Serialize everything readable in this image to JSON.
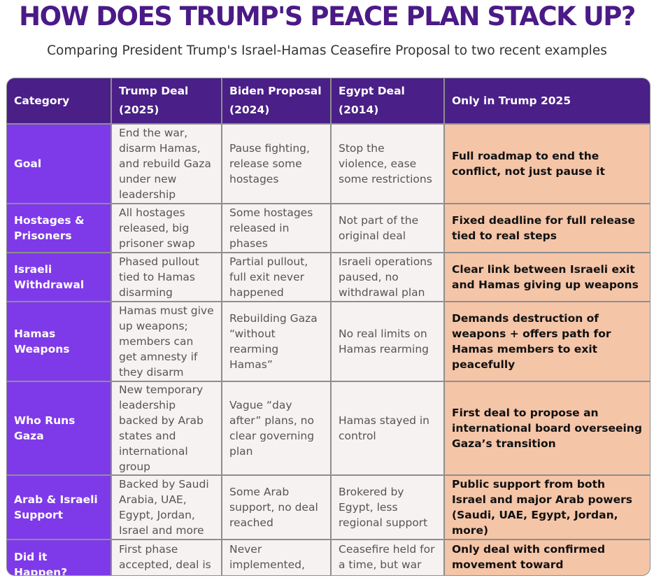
{
  "title": "HOW DOES TRUMP'S PEACE PLAN STACK UP?",
  "subtitle": "Comparing President Trump's Israel-Hamas Ceasefire Proposal to two recent examples",
  "table": {
    "headers": [
      {
        "line1": "Category",
        "line2": ""
      },
      {
        "line1": "Trump Deal",
        "line2": "(2025)"
      },
      {
        "line1": "Biden Proposal",
        "line2": "(2024)"
      },
      {
        "line1": "Egypt Deal",
        "line2": "(2014)"
      },
      {
        "line1": "Only in Trump 2025",
        "line2": ""
      }
    ],
    "rows": [
      {
        "category": "Goal",
        "trump": "End the war, disarm Hamas, and rebuild Gaza under new leadership",
        "biden": "Pause fighting, release some hostages",
        "egypt": "Stop the violence, ease some restrictions",
        "only_trump": "Full roadmap to end the conflict, not just pause it"
      },
      {
        "category": "Hostages & Prisoners",
        "trump": "All hostages released, big prisoner swap",
        "biden": "Some hostages released in phases",
        "egypt": "Not part of the original deal",
        "only_trump": "Fixed deadline for full release tied to real steps"
      },
      {
        "category": "Israeli Withdrawal",
        "trump": "Phased pullout tied to Hamas disarming",
        "biden": "Partial pullout, full exit never happened",
        "egypt": "Israeli operations paused, no withdrawal plan",
        "only_trump": "Clear link between Israeli exit and Hamas giving up weapons"
      },
      {
        "category": "Hamas Weapons",
        "trump": "Hamas must give up weapons; members can get amnesty if they disarm",
        "biden": "Rebuilding Gaza “without rearming Hamas”",
        "egypt": "No real limits on Hamas rearming",
        "only_trump": "Demands destruction of weapons + offers path for Hamas members to exit peacefully"
      },
      {
        "category": "Who Runs Gaza",
        "trump": "New temporary leadership backed by Arab states and international group",
        "biden": "Vague “day after” plans, no clear governing plan",
        "egypt": "Hamas stayed in control",
        "only_trump": "First deal to propose an international board overseeing Gaza’s transition"
      },
      {
        "category": "Arab & Israeli Support",
        "trump": "Backed by Saudi Arabia, UAE, Egypt, Jordan, Israel and more",
        "biden": "Some Arab support, no deal reached",
        "egypt": "Brokered by Egypt, less regional support",
        "only_trump": "Public support from both Israel and major Arab powers (Saudi, UAE, Egypt, Jordan, more)"
      },
      {
        "category": "Did it Happen?",
        "trump": "First phase accepted, deal is moving",
        "biden": "Never implemented, fighting resumed",
        "egypt": "Ceasefire held for a time, but war resumed later",
        "only_trump": "Only deal with confirmed movement toward implementation"
      }
    ]
  }
}
